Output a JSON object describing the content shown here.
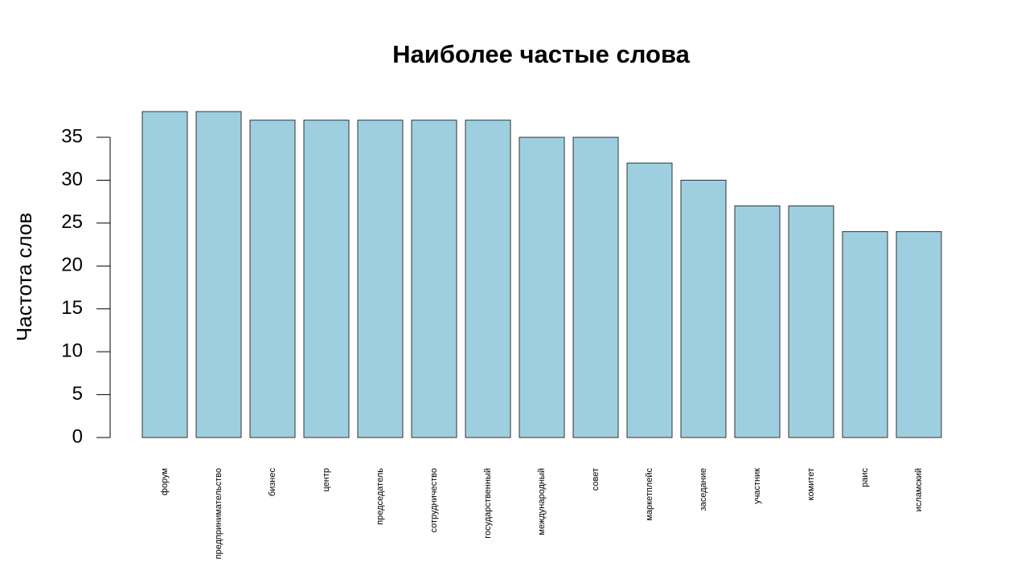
{
  "chart_data": {
    "type": "bar",
    "title": "Наиболее частые слова",
    "y_label": "Частота слов",
    "categories": [
      "форум",
      "предпринимательство",
      "бизнес",
      "центр",
      "председатель",
      "сотрудничество",
      "государственный",
      "международный",
      "совет",
      "маркетплейс",
      "заседание",
      "участник",
      "комитет",
      "раис",
      "исламский"
    ],
    "values": [
      38,
      38,
      37,
      37,
      37,
      37,
      37,
      35,
      35,
      32,
      30,
      27,
      27,
      24,
      24
    ],
    "color": "#9ecfe0",
    "ylim": [
      0,
      38
    ],
    "yticks": [
      0,
      5,
      10,
      15,
      20,
      25,
      30,
      35
    ],
    "grid": false
  }
}
